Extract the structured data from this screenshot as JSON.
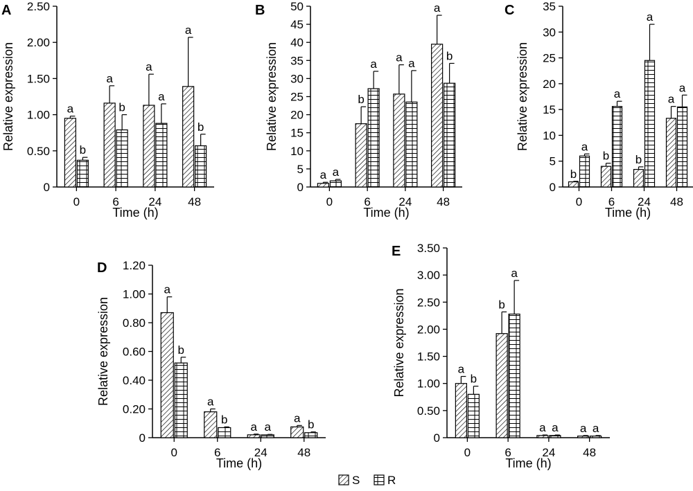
{
  "legend": {
    "entries": [
      {
        "label": "S",
        "pattern": "diagonal-hatch"
      },
      {
        "label": "R",
        "pattern": "brick-grid"
      }
    ]
  },
  "chart_data": [
    {
      "panel": "A",
      "type": "bar",
      "categories": [
        "0",
        "6",
        "24",
        "48"
      ],
      "xlabel": "Time (h)",
      "ylabel": "Relative expression",
      "ylim": [
        0,
        2.5
      ],
      "yticks": [
        "0",
        "0.50",
        "1.00",
        "1.50",
        "2.00",
        "2.50"
      ],
      "series": [
        {
          "name": "S",
          "values": [
            0.95,
            1.16,
            1.13,
            1.39
          ],
          "errors": [
            0.03,
            0.24,
            0.43,
            0.68
          ],
          "labels": [
            "a",
            "a",
            "a",
            "a"
          ]
        },
        {
          "name": "R",
          "values": [
            0.37,
            0.79,
            0.88,
            0.57
          ],
          "errors": [
            0.04,
            0.21,
            0.27,
            0.16
          ],
          "labels": [
            "b",
            "b",
            "a",
            "b"
          ]
        }
      ]
    },
    {
      "panel": "B",
      "type": "bar",
      "categories": [
        "0",
        "6",
        "24",
        "48"
      ],
      "xlabel": "Time (h)",
      "ylabel": "Relative expression",
      "ylim": [
        0,
        50
      ],
      "yticks": [
        "0",
        "5",
        "10",
        "15",
        "20",
        "25",
        "30",
        "35",
        "40",
        "45",
        "50"
      ],
      "series": [
        {
          "name": "S",
          "values": [
            1.0,
            17.5,
            25.7,
            39.5
          ],
          "errors": [
            0.3,
            4.7,
            8.1,
            8.0
          ],
          "labels": [
            "a",
            "b",
            "a",
            "a"
          ]
        },
        {
          "name": "R",
          "values": [
            1.7,
            27.2,
            23.5,
            28.7
          ],
          "errors": [
            0.4,
            4.8,
            8.7,
            5.5
          ],
          "labels": [
            "a",
            "a",
            "a",
            "b"
          ]
        }
      ]
    },
    {
      "panel": "C",
      "type": "bar",
      "categories": [
        "0",
        "6",
        "24",
        "48"
      ],
      "xlabel": "Time (h)",
      "ylabel": "Relative expression",
      "ylim": [
        0,
        35
      ],
      "yticks": [
        "0",
        "5",
        "10",
        "15",
        "20",
        "25",
        "30",
        "35"
      ],
      "series": [
        {
          "name": "S",
          "values": [
            1.0,
            4.0,
            3.4,
            13.3
          ],
          "errors": [
            0.1,
            0.6,
            0.5,
            2.3
          ],
          "labels": [
            "b",
            "b",
            "b",
            "a"
          ]
        },
        {
          "name": "R",
          "values": [
            6.0,
            15.6,
            24.5,
            15.5
          ],
          "errors": [
            0.4,
            1.0,
            7.0,
            2.3
          ],
          "labels": [
            "a",
            "a",
            "a",
            "a"
          ]
        }
      ]
    },
    {
      "panel": "D",
      "type": "bar",
      "categories": [
        "0",
        "6",
        "24",
        "48"
      ],
      "xlabel": "Time (h)",
      "ylabel": "Relative expression",
      "ylim": [
        0,
        1.2
      ],
      "yticks": [
        "0",
        "0.20",
        "0.40",
        "0.60",
        "0.80",
        "1.00",
        "1.20"
      ],
      "series": [
        {
          "name": "S",
          "values": [
            0.87,
            0.18,
            0.02,
            0.075
          ],
          "errors": [
            0.11,
            0.02,
            0.005,
            0.01
          ],
          "labels": [
            "a",
            "a",
            "a",
            "a"
          ]
        },
        {
          "name": "R",
          "values": [
            0.52,
            0.07,
            0.02,
            0.035
          ],
          "errors": [
            0.04,
            0.005,
            0.003,
            0.005
          ],
          "labels": [
            "b",
            "b",
            "a",
            "b"
          ]
        }
      ]
    },
    {
      "panel": "E",
      "type": "bar",
      "categories": [
        "0",
        "6",
        "24",
        "48"
      ],
      "xlabel": "Time (h)",
      "ylabel": "Relative expression",
      "ylim": [
        0,
        3.5
      ],
      "yticks": [
        "0",
        "0.50",
        "1.00",
        "1.50",
        "2.00",
        "2.50",
        "3.00",
        "3.50"
      ],
      "series": [
        {
          "name": "S",
          "values": [
            1.0,
            1.92,
            0.04,
            0.03
          ],
          "errors": [
            0.13,
            0.4,
            0.01,
            0.01
          ],
          "labels": [
            "a",
            "b",
            "a",
            "a"
          ]
        },
        {
          "name": "R",
          "values": [
            0.8,
            2.28,
            0.04,
            0.03
          ],
          "errors": [
            0.15,
            0.62,
            0.01,
            0.01
          ],
          "labels": [
            "b",
            "a",
            "a",
            "a"
          ]
        }
      ]
    }
  ]
}
